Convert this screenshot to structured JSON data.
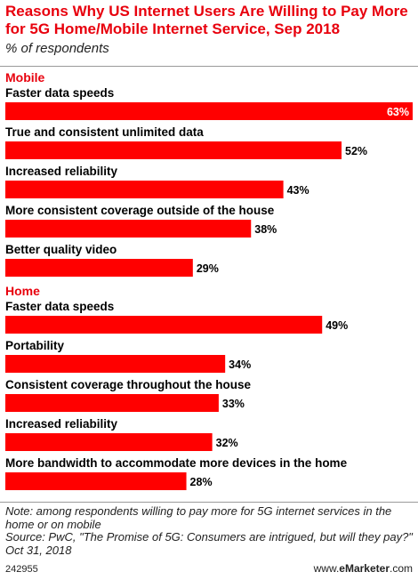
{
  "header": {
    "title": "Reasons Why US Internet Users Are Willing to Pay More for 5G Home/Mobile Internet Service, Sep 2018",
    "subtitle": "% of respondents"
  },
  "chart_data": {
    "type": "bar",
    "orientation": "horizontal",
    "value_suffix": "%",
    "xlim": [
      0,
      63
    ],
    "groups": [
      {
        "name": "Mobile",
        "categories": [
          "Faster data speeds",
          "True and consistent unlimited data",
          "Increased reliability",
          "More consistent coverage outside of the house",
          "Better quality video"
        ],
        "values": [
          63,
          52,
          43,
          38,
          29
        ]
      },
      {
        "name": "Home",
        "categories": [
          "Faster data speeds",
          "Portability",
          "Consistent coverage throughout the house",
          "Increased reliability",
          "More bandwidth to accommodate more devices in the home"
        ],
        "values": [
          49,
          34,
          33,
          32,
          28
        ]
      }
    ],
    "colors": {
      "bar": "#ff0000",
      "group_label": "#e8000d",
      "inside_label": "#ffffff",
      "outside_label": "#000000"
    }
  },
  "footer": {
    "note": "Note: among respondents willing to pay more for 5G internet services in the home or on mobile",
    "source": "Source: PwC, \"The Promise of 5G: Consumers are intrigued, but will they pay?\" Oct 31, 2018",
    "chart_id": "242955",
    "brand_prefix": "www.",
    "brand_name": "eMarketer",
    "brand_suffix": ".com"
  }
}
